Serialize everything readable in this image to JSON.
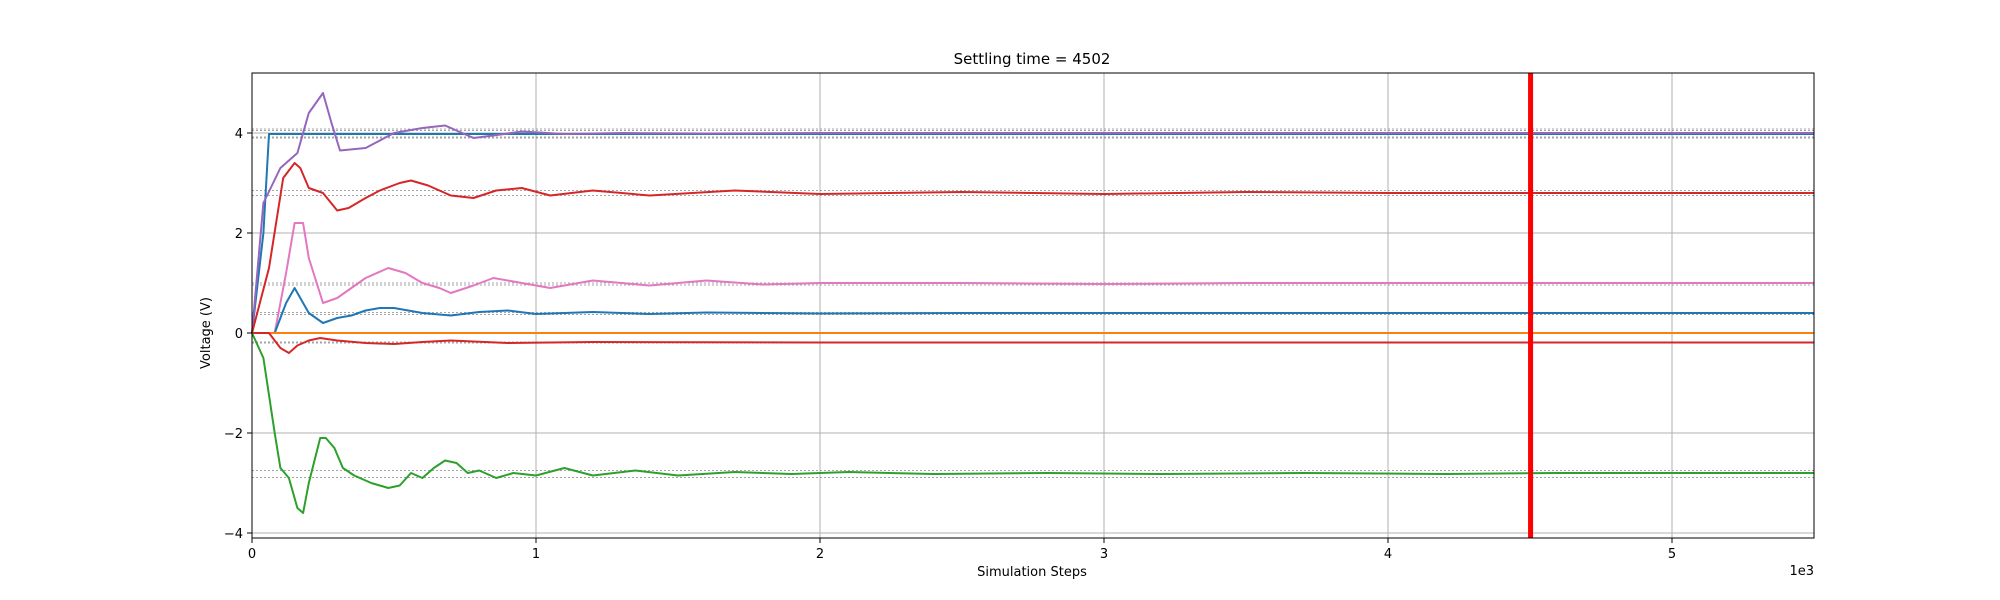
{
  "chart_data": {
    "type": "line",
    "title": "Settling time = 4502",
    "xlabel": "Simulation Steps",
    "ylabel": "Voltage (V)",
    "x_offset_label": "1e3",
    "xlim": [
      0,
      5500
    ],
    "ylim": [
      -4.1,
      5.2
    ],
    "x_ticks": [
      0,
      1000,
      2000,
      3000,
      4000,
      5000
    ],
    "x_tick_labels": [
      "0",
      "1",
      "2",
      "3",
      "4",
      "5"
    ],
    "y_ticks": [
      -4,
      -2,
      0,
      2,
      4
    ],
    "y_tick_labels": [
      "−4",
      "−2",
      "0",
      "2",
      "4"
    ],
    "grid": true,
    "settling_line": {
      "x": 4502,
      "color": "#ff0000"
    },
    "tolerance_bands": [
      {
        "lower": 3.92,
        "upper": 4.08,
        "color": "#1f77b4"
      },
      {
        "lower": 3.9,
        "upper": 4.05,
        "color": "#9467bd"
      },
      {
        "lower": 2.75,
        "upper": 2.85,
        "color": "#d62728"
      },
      {
        "lower": 0.96,
        "upper": 1.0,
        "color": "#e377c2"
      },
      {
        "lower": 0.37,
        "upper": 0.41,
        "color": "#1f77b4"
      },
      {
        "lower": -0.2,
        "upper": -0.18,
        "color": "#d62728"
      },
      {
        "lower": -2.89,
        "upper": -2.75,
        "color": "#2ca02c"
      }
    ],
    "series": [
      {
        "color": "#1f77b4",
        "x": [
          0,
          40,
          60,
          5500
        ],
        "y": [
          0,
          2.0,
          3.98,
          3.98
        ]
      },
      {
        "color": "#9467bd",
        "x": [
          0,
          40,
          100,
          160,
          200,
          250,
          280,
          310,
          400,
          500,
          600,
          680,
          720,
          780,
          850,
          950,
          1100,
          1300,
          1600,
          2000,
          5500
        ],
        "y": [
          0,
          2.6,
          3.3,
          3.6,
          4.4,
          4.8,
          4.2,
          3.65,
          3.7,
          4.0,
          4.1,
          4.15,
          4.05,
          3.9,
          3.95,
          4.03,
          3.98,
          4.0,
          3.99,
          4.0,
          4.0
        ]
      },
      {
        "color": "#d62728",
        "x": [
          0,
          60,
          110,
          150,
          170,
          200,
          250,
          300,
          340,
          400,
          450,
          520,
          560,
          620,
          700,
          780,
          860,
          950,
          1050,
          1200,
          1400,
          1700,
          2000,
          2500,
          3000,
          3500,
          4000,
          4500,
          5500
        ],
        "y": [
          0,
          1.3,
          3.1,
          3.4,
          3.3,
          2.9,
          2.8,
          2.45,
          2.5,
          2.7,
          2.85,
          3.0,
          3.05,
          2.95,
          2.75,
          2.7,
          2.85,
          2.9,
          2.75,
          2.85,
          2.75,
          2.85,
          2.78,
          2.82,
          2.78,
          2.82,
          2.8,
          2.8,
          2.8
        ]
      },
      {
        "color": "#e377c2",
        "x": [
          0,
          80,
          120,
          150,
          180,
          200,
          250,
          300,
          350,
          400,
          480,
          540,
          600,
          660,
          700,
          780,
          850,
          950,
          1050,
          1200,
          1400,
          1600,
          1800,
          2000,
          2500,
          3000,
          3500,
          4000,
          5500
        ],
        "y": [
          0,
          0.0,
          1.2,
          2.2,
          2.2,
          1.5,
          0.6,
          0.7,
          0.9,
          1.1,
          1.3,
          1.2,
          1.0,
          0.9,
          0.8,
          0.95,
          1.1,
          1.0,
          0.9,
          1.05,
          0.95,
          1.05,
          0.97,
          1.0,
          1.0,
          0.98,
          1.0,
          1.0,
          1.0
        ]
      },
      {
        "color": "#1f77b4",
        "x": [
          0,
          80,
          120,
          150,
          200,
          250,
          300,
          350,
          400,
          450,
          500,
          600,
          700,
          800,
          900,
          1000,
          1200,
          1400,
          1600,
          2000,
          2500,
          3000,
          4000,
          5500
        ],
        "y": [
          0,
          0.0,
          0.6,
          0.9,
          0.4,
          0.2,
          0.3,
          0.35,
          0.45,
          0.5,
          0.5,
          0.4,
          0.35,
          0.42,
          0.45,
          0.38,
          0.42,
          0.38,
          0.41,
          0.39,
          0.4,
          0.4,
          0.4,
          0.4
        ]
      },
      {
        "color": "#ff7f0e",
        "x": [
          0,
          5500
        ],
        "y": [
          0,
          0
        ]
      },
      {
        "color": "#d62728",
        "x": [
          0,
          60,
          100,
          130,
          160,
          200,
          240,
          300,
          400,
          500,
          600,
          700,
          900,
          1200,
          2000,
          5500
        ],
        "y": [
          0,
          0,
          -0.3,
          -0.4,
          -0.25,
          -0.15,
          -0.1,
          -0.15,
          -0.2,
          -0.22,
          -0.18,
          -0.15,
          -0.2,
          -0.18,
          -0.19,
          -0.19
        ]
      },
      {
        "color": "#2ca02c",
        "x": [
          0,
          40,
          80,
          100,
          130,
          160,
          180,
          200,
          240,
          260,
          290,
          320,
          360,
          420,
          480,
          520,
          560,
          600,
          640,
          680,
          720,
          760,
          800,
          860,
          920,
          1000,
          1100,
          1200,
          1350,
          1500,
          1700,
          1900,
          2100,
          2400,
          2800,
          3200,
          3700,
          4200,
          4600,
          5500
        ],
        "y": [
          0,
          -0.5,
          -2.0,
          -2.7,
          -2.9,
          -3.5,
          -3.6,
          -3.0,
          -2.1,
          -2.1,
          -2.3,
          -2.7,
          -2.85,
          -3.0,
          -3.1,
          -3.05,
          -2.8,
          -2.9,
          -2.7,
          -2.55,
          -2.6,
          -2.8,
          -2.75,
          -2.9,
          -2.8,
          -2.85,
          -2.7,
          -2.85,
          -2.75,
          -2.85,
          -2.78,
          -2.82,
          -2.78,
          -2.82,
          -2.8,
          -2.82,
          -2.8,
          -2.82,
          -2.8,
          -2.8
        ]
      }
    ]
  }
}
